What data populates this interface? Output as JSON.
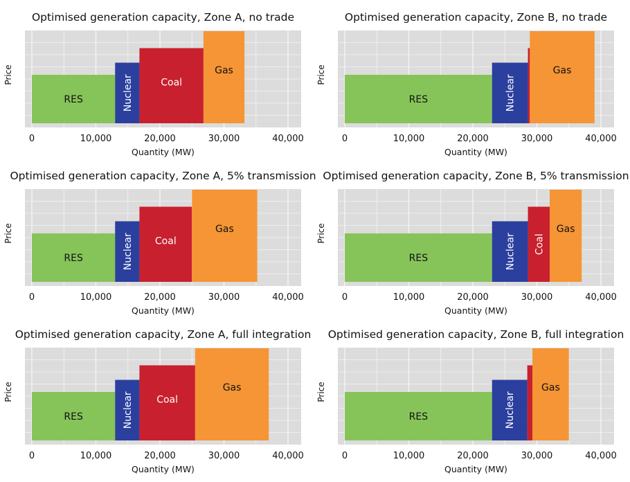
{
  "charts": {
    "xlabel": "Quantity (MW)",
    "ylabel": "Price",
    "xticks": [
      "0",
      "10,000",
      "20,000",
      "30,000",
      "40,000"
    ],
    "colors": {
      "RES": "#86c45a",
      "Nuclear": "#2b3f9e",
      "Coal": "#c8202e",
      "Gas": "#f59535",
      "plot_background": "#dcdcdc",
      "grid": "#f4f4f4"
    }
  },
  "chart_data": [
    {
      "type": "bar",
      "subtype": "supply-stack",
      "title": "Optimised generation capacity, Zone A, no trade",
      "xlabel": "Quantity (MW)",
      "ylabel": "Price",
      "xlim": [
        0,
        41000
      ],
      "grid": true,
      "segments": [
        {
          "label": "RES",
          "start": 0,
          "end": 13000,
          "price_level": 2,
          "color": "#86c45a"
        },
        {
          "label": "Nuclear",
          "start": 13000,
          "end": 16800,
          "price_level": 2.5,
          "color": "#2b3f9e",
          "vertical_label": true
        },
        {
          "label": "Coal",
          "start": 16800,
          "end": 26800,
          "price_level": 3.1,
          "color": "#c8202e"
        },
        {
          "label": "Gas",
          "start": 26800,
          "end": 33200,
          "price_level": 3.8,
          "color": "#f59535"
        }
      ]
    },
    {
      "type": "bar",
      "subtype": "supply-stack",
      "title": "Optimised generation capacity, Zone B, no trade",
      "xlabel": "Quantity (MW)",
      "ylabel": "Price",
      "xlim": [
        0,
        41000
      ],
      "grid": true,
      "segments": [
        {
          "label": "RES",
          "start": 0,
          "end": 23000,
          "price_level": 2,
          "color": "#86c45a"
        },
        {
          "label": "Nuclear",
          "start": 23000,
          "end": 28600,
          "price_level": 2.5,
          "color": "#2b3f9e",
          "vertical_label": true
        },
        {
          "label": "",
          "start": 28600,
          "end": 28900,
          "price_level": 3.1,
          "color": "#c8202e"
        },
        {
          "label": "Gas",
          "start": 28900,
          "end": 39000,
          "price_level": 3.8,
          "color": "#f59535"
        }
      ]
    },
    {
      "type": "bar",
      "subtype": "supply-stack",
      "title": "Optimised generation capacity, Zone A, 5% transmission",
      "xlabel": "Quantity (MW)",
      "ylabel": "Price",
      "xlim": [
        0,
        41000
      ],
      "grid": true,
      "segments": [
        {
          "label": "RES",
          "start": 0,
          "end": 13000,
          "price_level": 2,
          "color": "#86c45a"
        },
        {
          "label": "Nuclear",
          "start": 13000,
          "end": 16800,
          "price_level": 2.5,
          "color": "#2b3f9e",
          "vertical_label": true
        },
        {
          "label": "Coal",
          "start": 16800,
          "end": 25000,
          "price_level": 3.1,
          "color": "#c8202e"
        },
        {
          "label": "Gas",
          "start": 25000,
          "end": 35200,
          "price_level": 3.8,
          "color": "#f59535"
        }
      ]
    },
    {
      "type": "bar",
      "subtype": "supply-stack",
      "title": "Optimised generation capacity, Zone B, 5% transmission",
      "xlabel": "Quantity (MW)",
      "ylabel": "Price",
      "xlim": [
        0,
        41000
      ],
      "grid": true,
      "segments": [
        {
          "label": "RES",
          "start": 0,
          "end": 23000,
          "price_level": 2,
          "color": "#86c45a"
        },
        {
          "label": "Nuclear",
          "start": 23000,
          "end": 28600,
          "price_level": 2.5,
          "color": "#2b3f9e",
          "vertical_label": true
        },
        {
          "label": "Coal",
          "start": 28600,
          "end": 32000,
          "price_level": 3.1,
          "color": "#c8202e",
          "vertical_label": true
        },
        {
          "label": "Gas",
          "start": 32000,
          "end": 37000,
          "price_level": 3.8,
          "color": "#f59535"
        }
      ]
    },
    {
      "type": "bar",
      "subtype": "supply-stack",
      "title": "Optimised generation capacity, Zone A, full integration",
      "xlabel": "Quantity (MW)",
      "ylabel": "Price",
      "xlim": [
        0,
        41000
      ],
      "grid": true,
      "segments": [
        {
          "label": "RES",
          "start": 0,
          "end": 13000,
          "price_level": 2,
          "color": "#86c45a"
        },
        {
          "label": "Nuclear",
          "start": 13000,
          "end": 16800,
          "price_level": 2.5,
          "color": "#2b3f9e",
          "vertical_label": true
        },
        {
          "label": "Coal",
          "start": 16800,
          "end": 25500,
          "price_level": 3.1,
          "color": "#c8202e"
        },
        {
          "label": "Gas",
          "start": 25500,
          "end": 37000,
          "price_level": 3.8,
          "color": "#f59535"
        }
      ]
    },
    {
      "type": "bar",
      "subtype": "supply-stack",
      "title": "Optimised generation capacity, Zone B, full integration",
      "xlabel": "Quantity (MW)",
      "ylabel": "Price",
      "xlim": [
        0,
        41000
      ],
      "grid": true,
      "segments": [
        {
          "label": "RES",
          "start": 0,
          "end": 23000,
          "price_level": 2,
          "color": "#86c45a"
        },
        {
          "label": "Nuclear",
          "start": 23000,
          "end": 28500,
          "price_level": 2.5,
          "color": "#2b3f9e",
          "vertical_label": true
        },
        {
          "label": "",
          "start": 28500,
          "end": 29300,
          "price_level": 3.1,
          "color": "#c8202e"
        },
        {
          "label": "Gas",
          "start": 29300,
          "end": 35000,
          "price_level": 3.8,
          "color": "#f59535"
        }
      ]
    }
  ]
}
